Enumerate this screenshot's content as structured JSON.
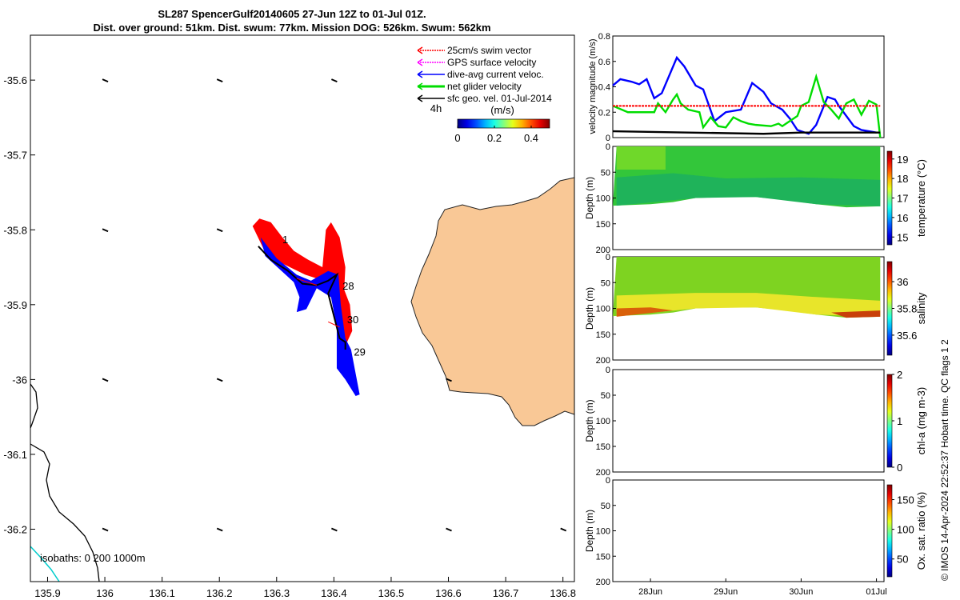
{
  "figure": {
    "title_line1": "SL287 SpencerGulf20140605 27-Jun 12Z to 01-Jul 01Z.",
    "title_line2": "Dist. over ground: 51km. Dist. swum: 77km. Mission DOG: 526km. Swum: 562km",
    "credit": "© IMOS 14-Apr-2024 22:52:37 Hobart time. QC flags 1  2"
  },
  "chart_data": [
    {
      "type": "scatter",
      "name": "map",
      "xlim": [
        135.87,
        136.82
      ],
      "ylim": [
        -36.27,
        -35.54
      ],
      "x_ticks": [
        "135.9",
        "136",
        "136.1",
        "136.2",
        "136.3",
        "136.4",
        "136.5",
        "136.6",
        "136.7",
        "136.8"
      ],
      "y_ticks": [
        "-35.6",
        "-35.7",
        "-35.8",
        "-35.9",
        "-36",
        "-36.1",
        "-36.2"
      ],
      "legend": [
        {
          "label": "25cm/s swim vector",
          "color": "#ff0000"
        },
        {
          "label": "GPS surface velocity",
          "color": "#ff00ff"
        },
        {
          "label": "dive-avg current veloc.",
          "color": "#0000ff"
        },
        {
          "label": "net glider velocity",
          "color": "#00dd00"
        },
        {
          "label": "sfc geo. vel. 01-Jul-2014",
          "color": "#000000"
        }
      ],
      "time_marker": "4h",
      "colorbar": {
        "label": "(m/s)",
        "ticks": [
          "0",
          "0.2",
          "0.4"
        ],
        "range": [
          0,
          0.5
        ]
      },
      "day_labels": [
        {
          "text": "1",
          "lon": 136.31,
          "lat": -35.818
        },
        {
          "text": "28",
          "lon": 136.415,
          "lat": -35.88
        },
        {
          "text": "30",
          "lon": 136.423,
          "lat": -35.925
        },
        {
          "text": "29",
          "lon": 136.435,
          "lat": -35.968
        }
      ],
      "isobaths_label": "isobaths: 0   200  1000m",
      "land_color": "#f9c896",
      "track": [
        [
          136.268,
          -35.822
        ],
        [
          136.29,
          -35.84
        ],
        [
          136.32,
          -35.855
        ],
        [
          136.345,
          -35.872
        ],
        [
          136.37,
          -35.874
        ],
        [
          136.39,
          -35.868
        ],
        [
          136.405,
          -35.86
        ],
        [
          136.39,
          -35.885
        ],
        [
          136.4,
          -35.915
        ],
        [
          136.405,
          -35.93
        ],
        [
          136.41,
          -35.945
        ],
        [
          136.42,
          -35.95
        ],
        [
          136.42,
          -35.96
        ]
      ],
      "current_poly": [
        [
          136.272,
          -35.81
        ],
        [
          136.3,
          -35.838
        ],
        [
          136.335,
          -35.86
        ],
        [
          136.36,
          -35.868
        ],
        [
          136.39,
          -35.855
        ],
        [
          136.408,
          -35.86
        ],
        [
          136.412,
          -35.9
        ],
        [
          136.42,
          -35.945
        ],
        [
          136.43,
          -35.96
        ],
        [
          136.445,
          -36.02
        ],
        [
          136.438,
          -36.022
        ],
        [
          136.42,
          -36.0
        ],
        [
          136.405,
          -35.985
        ],
        [
          136.405,
          -35.93
        ],
        [
          136.395,
          -35.89
        ],
        [
          136.37,
          -35.878
        ],
        [
          136.352,
          -35.906
        ],
        [
          136.335,
          -35.91
        ],
        [
          136.34,
          -35.89
        ],
        [
          136.33,
          -35.87
        ],
        [
          136.28,
          -35.835
        ]
      ],
      "swim_poly": [
        [
          136.258,
          -35.795
        ],
        [
          136.27,
          -35.785
        ],
        [
          136.29,
          -35.79
        ],
        [
          136.31,
          -35.81
        ],
        [
          136.33,
          -35.828
        ],
        [
          136.355,
          -35.84
        ],
        [
          136.38,
          -35.85
        ],
        [
          136.386,
          -35.8
        ],
        [
          136.395,
          -35.79
        ],
        [
          136.41,
          -35.81
        ],
        [
          136.42,
          -35.85
        ],
        [
          136.418,
          -35.88
        ],
        [
          136.428,
          -35.9
        ],
        [
          136.432,
          -35.935
        ],
        [
          136.42,
          -35.955
        ],
        [
          136.405,
          -35.93
        ],
        [
          136.4,
          -35.89
        ],
        [
          136.39,
          -35.87
        ],
        [
          136.35,
          -35.86
        ],
        [
          136.31,
          -35.845
        ],
        [
          136.28,
          -35.83
        ]
      ],
      "sfc_vectors": [
        [
          136.0,
          -35.6
        ],
        [
          136.2,
          -35.6
        ],
        [
          136.4,
          -35.6
        ],
        [
          136.0,
          -35.8
        ],
        [
          136.2,
          -35.8
        ],
        [
          136.0,
          -36.0
        ],
        [
          136.2,
          -36.0
        ],
        [
          136.6,
          -36.0
        ],
        [
          136.0,
          -36.2
        ],
        [
          136.2,
          -36.2
        ],
        [
          136.4,
          -36.2
        ],
        [
          136.6,
          -36.2
        ],
        [
          136.8,
          -36.2
        ]
      ]
    },
    {
      "type": "line",
      "name": "velocity",
      "ylabel": "velocity magnitude (m/s)",
      "ylim": [
        0,
        0.8
      ],
      "y_ticks": [
        "0",
        "0.2",
        "0.4",
        "0.6",
        "0.8"
      ],
      "xlim": [
        27.5,
        31.1
      ],
      "series": [
        {
          "color": "#0000ff",
          "values": [
            [
              27.5,
              0.41
            ],
            [
              27.6,
              0.46
            ],
            [
              27.75,
              0.44
            ],
            [
              27.85,
              0.42
            ],
            [
              27.95,
              0.46
            ],
            [
              28.05,
              0.31
            ],
            [
              28.15,
              0.35
            ],
            [
              28.35,
              0.63
            ],
            [
              28.45,
              0.56
            ],
            [
              28.6,
              0.41
            ],
            [
              28.7,
              0.38
            ],
            [
              28.85,
              0.13
            ],
            [
              29.0,
              0.2
            ],
            [
              29.2,
              0.22
            ],
            [
              29.35,
              0.43
            ],
            [
              29.5,
              0.36
            ],
            [
              29.6,
              0.27
            ],
            [
              29.75,
              0.22
            ],
            [
              29.85,
              0.15
            ],
            [
              29.95,
              0.06
            ],
            [
              30.1,
              0.03
            ],
            [
              30.2,
              0.1
            ],
            [
              30.35,
              0.32
            ],
            [
              30.45,
              0.3
            ],
            [
              30.5,
              0.25
            ],
            [
              30.6,
              0.17
            ],
            [
              30.7,
              0.09
            ],
            [
              30.8,
              0.06
            ],
            [
              31.0,
              0.04
            ]
          ]
        },
        {
          "color": "#00dd00",
          "values": [
            [
              27.5,
              0.25
            ],
            [
              27.7,
              0.2
            ],
            [
              28.05,
              0.2
            ],
            [
              28.1,
              0.27
            ],
            [
              28.2,
              0.2
            ],
            [
              28.3,
              0.3
            ],
            [
              28.35,
              0.34
            ],
            [
              28.4,
              0.27
            ],
            [
              28.5,
              0.22
            ],
            [
              28.65,
              0.2
            ],
            [
              28.7,
              0.08
            ],
            [
              28.8,
              0.16
            ],
            [
              28.9,
              0.09
            ],
            [
              29.0,
              0.08
            ],
            [
              29.1,
              0.16
            ],
            [
              29.2,
              0.13
            ],
            [
              29.3,
              0.11
            ],
            [
              29.4,
              0.1
            ],
            [
              29.6,
              0.09
            ],
            [
              29.7,
              0.11
            ],
            [
              29.75,
              0.09
            ],
            [
              29.8,
              0.11
            ],
            [
              29.95,
              0.17
            ],
            [
              30.0,
              0.25
            ],
            [
              30.1,
              0.28
            ],
            [
              30.2,
              0.48
            ],
            [
              30.3,
              0.28
            ],
            [
              30.4,
              0.22
            ],
            [
              30.5,
              0.15
            ],
            [
              30.6,
              0.27
            ],
            [
              30.7,
              0.3
            ],
            [
              30.8,
              0.18
            ],
            [
              30.9,
              0.29
            ],
            [
              31.0,
              0.26
            ],
            [
              31.05,
              0.0
            ]
          ]
        },
        {
          "color": "#ff0000",
          "values": [
            [
              27.5,
              0.25
            ],
            [
              31.05,
              0.25
            ]
          ]
        },
        {
          "color": "#000000",
          "values": [
            [
              27.5,
              0.05
            ],
            [
              28.5,
              0.04
            ],
            [
              29.5,
              0.03
            ],
            [
              30.0,
              0.04
            ],
            [
              31.05,
              0.04
            ]
          ]
        }
      ]
    },
    {
      "type": "heatmap",
      "name": "temperature",
      "ylabel": "Depth (m)",
      "ylim": [
        0,
        200
      ],
      "y_ticks": [
        "0",
        "50",
        "100",
        "150",
        "200"
      ],
      "colorbar": {
        "label": "temperature (°C)",
        "ticks": [
          "15",
          "16",
          "17",
          "18",
          "19"
        ],
        "range": [
          14.6,
          19.4
        ]
      },
      "profile_bottom": [
        [
          27.5,
          115
        ],
        [
          28.0,
          112
        ],
        [
          28.3,
          108
        ],
        [
          28.6,
          100
        ],
        [
          29.0,
          98
        ],
        [
          29.4,
          98
        ],
        [
          29.8,
          104
        ],
        [
          30.2,
          112
        ],
        [
          30.6,
          118
        ],
        [
          31.05,
          116
        ]
      ]
    },
    {
      "type": "heatmap",
      "name": "salinity",
      "ylabel": "Depth (m)",
      "ylim": [
        0,
        200
      ],
      "y_ticks": [
        "0",
        "50",
        "100",
        "150",
        "200"
      ],
      "colorbar": {
        "label": "salinity",
        "ticks": [
          "35.6",
          "35.8",
          "36"
        ],
        "range": [
          35.45,
          36.15
        ]
      },
      "profile_bottom": [
        [
          27.5,
          115
        ],
        [
          28.0,
          112
        ],
        [
          28.3,
          108
        ],
        [
          28.6,
          100
        ],
        [
          29.0,
          98
        ],
        [
          29.4,
          98
        ],
        [
          29.8,
          104
        ],
        [
          30.2,
          112
        ],
        [
          30.6,
          118
        ],
        [
          31.05,
          116
        ]
      ]
    },
    {
      "type": "heatmap",
      "name": "chl-a",
      "ylabel": "Depth (m)",
      "ylim": [
        0,
        200
      ],
      "y_ticks": [
        "0",
        "50",
        "100",
        "150",
        "200"
      ],
      "colorbar": {
        "label": "chl-a (mg m-3)",
        "ticks": [
          "0",
          "1",
          "2"
        ],
        "range": [
          0,
          2
        ]
      }
    },
    {
      "type": "heatmap",
      "name": "oxygen",
      "ylabel": "Depth (m)",
      "ylim": [
        0,
        200
      ],
      "y_ticks": [
        "0",
        "50",
        "100",
        "150",
        "200"
      ],
      "colorbar": {
        "label": "Ox. sat. ratio (%)",
        "ticks": [
          "50",
          "100",
          "150"
        ],
        "range": [
          20,
          175
        ]
      },
      "x_ticks": [
        "28Jun",
        "29Jun",
        "30Jun",
        "01Jul"
      ]
    }
  ]
}
